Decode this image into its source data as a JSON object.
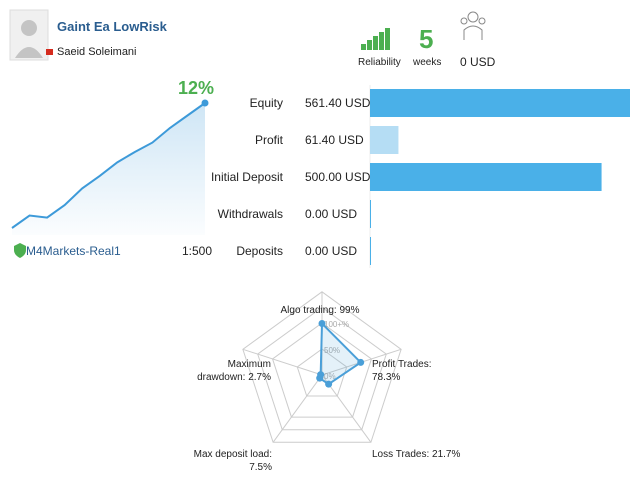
{
  "header": {
    "title": "Gaint Ea LowRisk",
    "author": "Saeid Soleimani",
    "reliability_label": "Reliability",
    "weeks": "5",
    "weeks_label": "weeks",
    "subscribers": "0 USD"
  },
  "growth": {
    "label": "12%",
    "color": "#3d9ad9",
    "values": [
      0,
      1.2,
      1.0,
      2.2,
      3.8,
      5.0,
      6.3,
      7.3,
      8.2,
      9.6,
      10.8,
      12
    ]
  },
  "account": {
    "server": "M4Markets-Real1",
    "leverage": "1:500"
  },
  "balance": {
    "rows": [
      {
        "label": "Equity",
        "value": 561.4,
        "value_label": "561.40 USD",
        "color": "#4ab0e8"
      },
      {
        "label": "Profit",
        "value": 61.4,
        "value_label": "61.40 USD",
        "color": "#b5ddf4"
      },
      {
        "label": "Initial Deposit",
        "value": 500.0,
        "value_label": "500.00 USD",
        "color": "#4ab0e8"
      },
      {
        "label": "Withdrawals",
        "value": 0.0,
        "value_label": "0.00 USD",
        "color": "#4ab0e8"
      },
      {
        "label": "Deposits",
        "value": 0.0,
        "value_label": "0.00 USD",
        "color": "#4ab0e8"
      }
    ]
  },
  "radar": {
    "rlim": [
      0,
      100
    ],
    "color": "#4a9fd8",
    "ticks": [
      {
        "value": 0,
        "label": "0%"
      },
      {
        "value": 50,
        "label": "50%"
      },
      {
        "value": 100,
        "label": "100+%"
      }
    ],
    "axes": [
      {
        "label": "Algo trading: 99%",
        "value": 99
      },
      {
        "label": "Profit Trades: 78.3%",
        "value": 78.3
      },
      {
        "label": "Loss Trades: 21.7%",
        "value": 21.7
      },
      {
        "label": "Max deposit load: 7.5%",
        "value": 7.5
      },
      {
        "label": "Maximum drawdown: 2.7%",
        "value": 2.7
      }
    ]
  }
}
